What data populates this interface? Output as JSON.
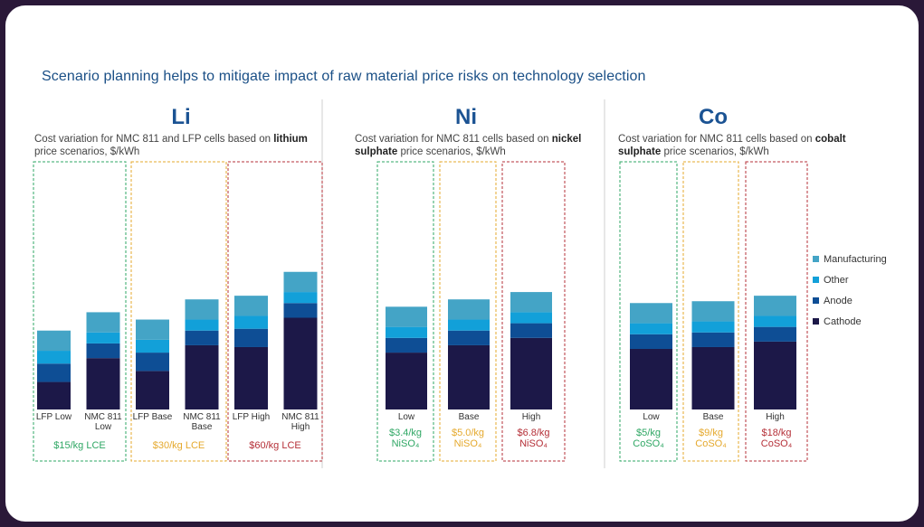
{
  "title": "Scenario planning helps to mitigate impact of raw material price risks on technology selection",
  "colors": {
    "Manufacturing": "#44a4c6",
    "Other": "#12a0d9",
    "Anode": "#0e4e95",
    "Cathode": "#1c1848",
    "green": "#2fa764",
    "amber": "#e5a92d",
    "red": "#b53038",
    "divider": "#cfcfcf"
  },
  "legend": [
    "Manufacturing",
    "Other",
    "Anode",
    "Cathode"
  ],
  "panels": [
    {
      "heading": "Li",
      "subtitle_pre": "Cost variation for NMC 811 and LFP cells based on ",
      "subtitle_bold": "lithium",
      "subtitle_post": " price scenarios, $/kWh"
    },
    {
      "heading": "Ni",
      "subtitle_pre": "Cost variation for NMC 811 cells based on ",
      "subtitle_bold": "nickel sulphate",
      "subtitle_post": " price scenarios, $/kWh"
    },
    {
      "heading": "Co",
      "subtitle_pre": "Cost variation for NMC 811 cells based on ",
      "subtitle_bold": "cobalt sulphate",
      "subtitle_post": " price scenarios, $/kWh"
    }
  ],
  "chart_data": [
    {
      "type": "bar",
      "stacked": true,
      "panel": "Li",
      "categories": [
        [
          "LFP Low"
        ],
        [
          "NMC 811",
          "Low"
        ],
        [
          "LFP Base"
        ],
        [
          "NMC 811",
          "Base"
        ],
        [
          "LFP High"
        ],
        [
          "NMC 811",
          "High"
        ]
      ],
      "series": [
        {
          "name": "Cathode",
          "values": [
            15,
            28,
            21,
            35,
            34,
            50
          ]
        },
        {
          "name": "Anode",
          "values": [
            10,
            8,
            10,
            8,
            10,
            8
          ]
        },
        {
          "name": "Other",
          "values": [
            7,
            6,
            7,
            6,
            7,
            6
          ]
        },
        {
          "name": "Manufacturing",
          "values": [
            11,
            11,
            11,
            11,
            11,
            11
          ]
        }
      ],
      "ylim": [
        0,
        80
      ],
      "groups": [
        {
          "label": "$15/kg LCE",
          "color": "green",
          "span": [
            0,
            1
          ]
        },
        {
          "label": "$30/kg LCE",
          "color": "amber",
          "span": [
            2,
            3
          ]
        },
        {
          "label": "$60/kg LCE",
          "color": "red",
          "span": [
            4,
            5
          ]
        }
      ]
    },
    {
      "type": "bar",
      "stacked": true,
      "panel": "Ni",
      "categories": [
        [
          "Low"
        ],
        [
          "Base"
        ],
        [
          "High"
        ]
      ],
      "series": [
        {
          "name": "Cathode",
          "values": [
            31,
            35,
            39
          ]
        },
        {
          "name": "Anode",
          "values": [
            8,
            8,
            8
          ]
        },
        {
          "name": "Other",
          "values": [
            6,
            6,
            6
          ]
        },
        {
          "name": "Manufacturing",
          "values": [
            11,
            11,
            11
          ]
        }
      ],
      "ylim": [
        0,
        80
      ],
      "groups": [
        {
          "label": [
            "$3.4/kg",
            "NiSO₄"
          ],
          "color": "green",
          "span": [
            0,
            0
          ]
        },
        {
          "label": [
            "$5.0/kg",
            "NiSO₄"
          ],
          "color": "amber",
          "span": [
            1,
            1
          ]
        },
        {
          "label": [
            "$6.8/kg",
            "NiSO₄"
          ],
          "color": "red",
          "span": [
            2,
            2
          ]
        }
      ]
    },
    {
      "type": "bar",
      "stacked": true,
      "panel": "Co",
      "categories": [
        [
          "Low"
        ],
        [
          "Base"
        ],
        [
          "High"
        ]
      ],
      "series": [
        {
          "name": "Cathode",
          "values": [
            33,
            34,
            37
          ]
        },
        {
          "name": "Anode",
          "values": [
            8,
            8,
            8
          ]
        },
        {
          "name": "Other",
          "values": [
            6,
            6,
            6
          ]
        },
        {
          "name": "Manufacturing",
          "values": [
            11,
            11,
            11
          ]
        }
      ],
      "ylim": [
        0,
        80
      ],
      "groups": [
        {
          "label": [
            "$5/kg",
            "CoSO₄"
          ],
          "color": "green",
          "span": [
            0,
            0
          ]
        },
        {
          "label": [
            "$9/kg",
            "CoSO₄"
          ],
          "color": "amber",
          "span": [
            1,
            1
          ]
        },
        {
          "label": [
            "$18/kg",
            "CoSO₄"
          ],
          "color": "red",
          "span": [
            2,
            2
          ]
        }
      ]
    }
  ]
}
